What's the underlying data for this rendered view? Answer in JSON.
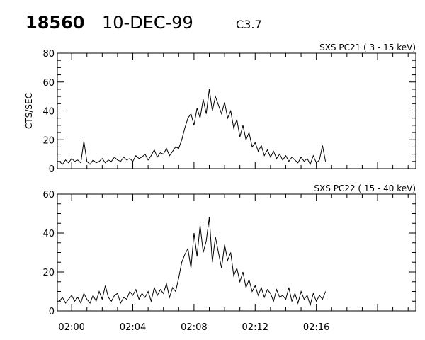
{
  "header": {
    "id": "18560",
    "date": "10-DEC-99",
    "class": "C3.7"
  },
  "colors": {
    "line": "#000000",
    "background": "#ffffff"
  },
  "chart_data": [
    {
      "type": "line",
      "title": "SXS PC21  (  3 - 15 keV)",
      "ylabel": "CTS/SEC",
      "xlabel": "",
      "xlim": [
        "01:59:04",
        "02:22:30"
      ],
      "ylim": [
        0,
        80
      ],
      "yticks": [
        0,
        20,
        40,
        60,
        80
      ],
      "xticks": [
        "02:00",
        "02:04",
        "02:08",
        "02:12",
        "02:16"
      ],
      "show_xticklabels": false,
      "grid": false,
      "series": [
        {
          "values": [
            5,
            3,
            6,
            4,
            7,
            5,
            6,
            4,
            19,
            5,
            3,
            6,
            4,
            5,
            7,
            4,
            6,
            5,
            8,
            6,
            5,
            8,
            6,
            7,
            5,
            9,
            7,
            8,
            10,
            6,
            9,
            13,
            8,
            11,
            10,
            14,
            9,
            12,
            15,
            14,
            20,
            28,
            35,
            38,
            30,
            42,
            35,
            48,
            38,
            55,
            40,
            50,
            44,
            38,
            46,
            35,
            40,
            28,
            34,
            22,
            30,
            20,
            25,
            15,
            18,
            12,
            16,
            9,
            13,
            8,
            12,
            7,
            10,
            6,
            9,
            5,
            8,
            6,
            4,
            8,
            5,
            7,
            3,
            9,
            4,
            6,
            16,
            5
          ]
        }
      ]
    },
    {
      "type": "line",
      "title": "SXS PC22  ( 15 - 40 keV)",
      "ylabel": "",
      "xlabel": "",
      "xlim": [
        "01:59:04",
        "02:22:30"
      ],
      "ylim": [
        0,
        60
      ],
      "yticks": [
        0,
        20,
        40,
        60
      ],
      "xticks": [
        "02:00",
        "02:04",
        "02:08",
        "02:12",
        "02:16"
      ],
      "show_xticklabels": true,
      "grid": false,
      "series": [
        {
          "values": [
            5,
            7,
            4,
            6,
            8,
            5,
            7,
            4,
            9,
            6,
            4,
            8,
            5,
            10,
            6,
            13,
            7,
            5,
            8,
            9,
            4,
            7,
            6,
            10,
            8,
            11,
            6,
            9,
            7,
            10,
            5,
            12,
            8,
            11,
            9,
            14,
            7,
            12,
            10,
            17,
            25,
            29,
            32,
            22,
            40,
            28,
            44,
            30,
            36,
            48,
            25,
            38,
            30,
            22,
            34,
            26,
            30,
            18,
            22,
            15,
            20,
            12,
            16,
            10,
            13,
            8,
            12,
            7,
            11,
            9,
            5,
            11,
            7,
            8,
            6,
            12,
            5,
            9,
            4,
            10,
            6,
            8,
            3,
            9,
            5,
            8,
            6,
            10
          ]
        }
      ]
    }
  ],
  "time_axis": [
    "01:59:12",
    "01:59:24",
    "01:59:36",
    "01:59:48",
    "02:00:00",
    "02:00:12",
    "02:00:24",
    "02:00:36",
    "02:00:48",
    "02:01:00",
    "02:01:12",
    "02:01:24",
    "02:01:36",
    "02:01:48",
    "02:02:00",
    "02:02:12",
    "02:02:24",
    "02:02:36",
    "02:02:48",
    "02:03:00",
    "02:03:12",
    "02:03:24",
    "02:03:36",
    "02:03:48",
    "02:04:00",
    "02:04:12",
    "02:04:24",
    "02:04:36",
    "02:04:48",
    "02:05:00",
    "02:05:12",
    "02:05:24",
    "02:05:36",
    "02:05:48",
    "02:06:00",
    "02:06:12",
    "02:06:24",
    "02:06:36",
    "02:06:48",
    "02:07:00",
    "02:07:12",
    "02:07:24",
    "02:07:36",
    "02:07:48",
    "02:08:00",
    "02:08:12",
    "02:08:24",
    "02:08:36",
    "02:08:48",
    "02:09:00",
    "02:09:12",
    "02:09:24",
    "02:09:36",
    "02:09:48",
    "02:10:00",
    "02:10:12",
    "02:10:24",
    "02:10:36",
    "02:10:48",
    "02:11:00",
    "02:11:12",
    "02:11:24",
    "02:11:36",
    "02:11:48",
    "02:12:00",
    "02:12:12",
    "02:12:24",
    "02:12:36",
    "02:12:48",
    "02:13:00",
    "02:13:12",
    "02:13:24",
    "02:13:36",
    "02:13:48",
    "02:14:00",
    "02:14:12",
    "02:14:24",
    "02:14:36",
    "02:14:48",
    "02:15:00",
    "02:15:12",
    "02:15:24",
    "02:15:36",
    "02:15:48",
    "02:16:00",
    "02:16:12",
    "02:16:24",
    "02:16:36"
  ]
}
